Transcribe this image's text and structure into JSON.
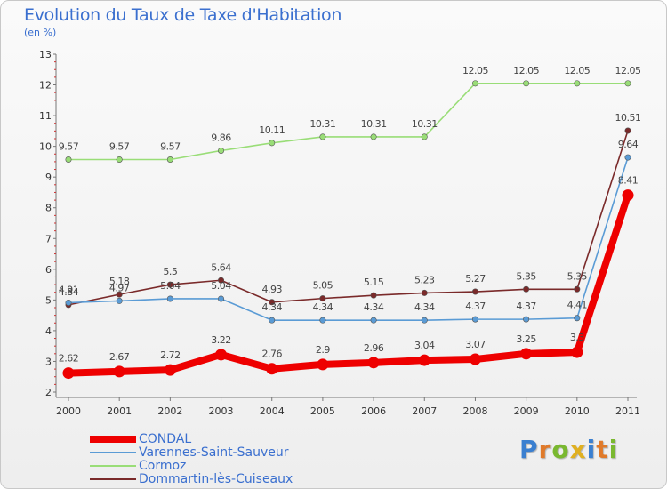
{
  "title": "Evolution du Taux de Taxe d'Habitation",
  "unit": "(en %)",
  "brand": "Proxiti",
  "chart_data": {
    "type": "line",
    "title": "Evolution du Taux de Taxe d'Habitation",
    "ylabel": "(en %)",
    "xlabel": "",
    "categories": [
      "2000",
      "2001",
      "2002",
      "2003",
      "2004",
      "2005",
      "2006",
      "2007",
      "2008",
      "2009",
      "2010",
      "2011"
    ],
    "ylim": [
      2,
      13
    ],
    "yticks": [
      "2",
      "3",
      "4",
      "5",
      "6",
      "7",
      "8",
      "9",
      "10",
      "11",
      "12",
      "13"
    ],
    "grid": false,
    "legend_position": "bottom-left",
    "series": [
      {
        "name": "CONDAL",
        "color": "#ee0000",
        "emphasis": true,
        "values": [
          2.62,
          2.67,
          2.72,
          3.22,
          2.76,
          2.9,
          2.96,
          3.04,
          3.07,
          3.25,
          3.3,
          8.41
        ],
        "labels": [
          "2.62",
          "2.67",
          "2.72",
          "3.22",
          "2.76",
          "2.9",
          "2.96",
          "3.04",
          "3.07",
          "3.25",
          "3.3",
          "8.41"
        ]
      },
      {
        "name": "Varennes-Saint-Sauveur",
        "color": "#5a9bd5",
        "values": [
          4.91,
          4.97,
          5.04,
          5.04,
          4.34,
          4.34,
          4.34,
          4.34,
          4.37,
          4.37,
          4.41,
          9.64
        ],
        "labels": [
          "4.91",
          "4.97",
          "5.04",
          "5.04",
          "4.34",
          "4.34",
          "4.34",
          "4.34",
          "4.37",
          "4.37",
          "4.41",
          "9.64"
        ]
      },
      {
        "name": "Cormoz",
        "color": "#99dd77",
        "values": [
          9.57,
          9.57,
          9.57,
          9.86,
          10.11,
          10.31,
          10.31,
          10.31,
          12.05,
          12.05,
          12.05,
          12.05
        ],
        "labels": [
          "9.57",
          "9.57",
          "9.57",
          "9.86",
          "10.11",
          "10.31",
          "10.31",
          "10.31",
          "12.05",
          "12.05",
          "12.05",
          "12.05"
        ]
      },
      {
        "name": "Dommartin-lès-Cuiseaux",
        "color": "#7a2a2a",
        "values": [
          4.84,
          5.18,
          5.5,
          5.64,
          4.93,
          5.05,
          5.15,
          5.23,
          5.27,
          5.35,
          5.35,
          10.51
        ],
        "labels": [
          "4.84",
          "5.18",
          "5.5",
          "5.64",
          "4.93",
          "5.05",
          "5.15",
          "5.23",
          "5.27",
          "5.35",
          "5.35",
          "10.51"
        ]
      }
    ]
  }
}
